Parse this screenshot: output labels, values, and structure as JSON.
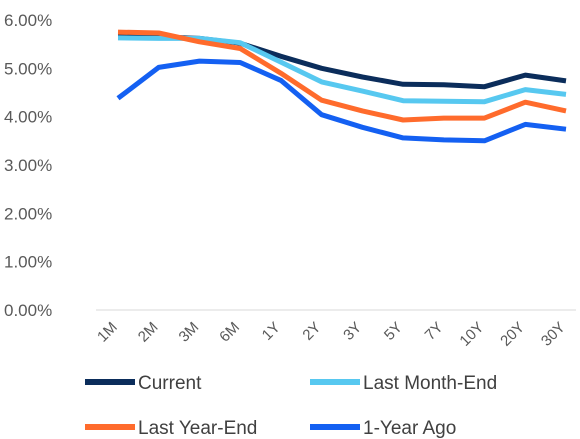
{
  "chart_data": {
    "type": "line",
    "categories": [
      "1M",
      "2M",
      "3M",
      "6M",
      "1Y",
      "2Y",
      "3Y",
      "5Y",
      "7Y",
      "10Y",
      "20Y",
      "30Y"
    ],
    "y_ticks": [
      "0.00%",
      "1.00%",
      "2.00%",
      "3.00%",
      "4.00%",
      "5.00%",
      "6.00%"
    ],
    "ylim": [
      0,
      6
    ],
    "legend_position": "bottom",
    "series": [
      {
        "name": "Current",
        "color": "#0B2D5B",
        "values": [
          5.65,
          5.65,
          5.62,
          5.52,
          5.25,
          5.0,
          4.82,
          4.67,
          4.66,
          4.62,
          4.86,
          4.74
        ]
      },
      {
        "name": "Last Month-End",
        "color": "#57C8F0",
        "values": [
          5.63,
          5.62,
          5.62,
          5.53,
          5.13,
          4.72,
          4.53,
          4.33,
          4.32,
          4.31,
          4.56,
          4.46
        ]
      },
      {
        "name": "Last Year-End",
        "color": "#FF6B2C",
        "values": [
          5.75,
          5.73,
          5.55,
          5.41,
          4.9,
          4.34,
          4.12,
          3.93,
          3.97,
          3.97,
          4.3,
          4.12
        ]
      },
      {
        "name": "1-Year Ago",
        "color": "#1460F2",
        "values": [
          4.38,
          5.02,
          5.15,
          5.12,
          4.75,
          4.04,
          3.78,
          3.56,
          3.52,
          3.5,
          3.84,
          3.74
        ]
      }
    ]
  }
}
